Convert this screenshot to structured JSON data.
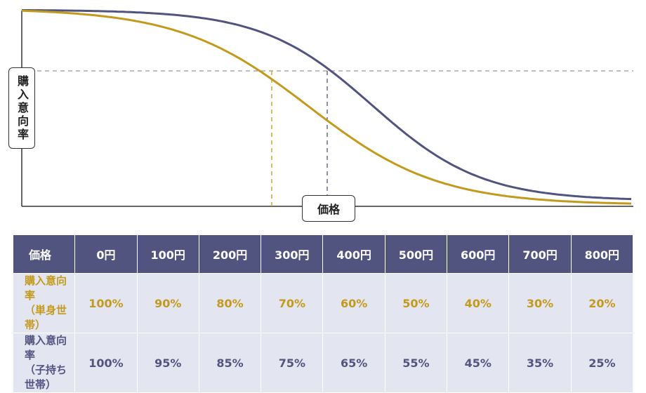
{
  "chart_data": {
    "type": "line",
    "ylabel": "購入意向率",
    "xlabel": "価格",
    "series": [
      {
        "name": "購入意向率（単身世帯）",
        "color": "#c49a1c"
      },
      {
        "name": "購入意向率（子持ち世帯）",
        "color": "#525480"
      }
    ],
    "grid": false
  },
  "table": {
    "header": [
      "価格",
      "0円",
      "100円",
      "200円",
      "300円",
      "400円",
      "500円",
      "600円",
      "700円",
      "800円"
    ],
    "rows": [
      {
        "label_line1": "購入意向率",
        "label_line2": "（単身世帯）",
        "values": [
          "100%",
          "90%",
          "80%",
          "70%",
          "60%",
          "50%",
          "40%",
          "30%",
          "20%"
        ]
      },
      {
        "label_line1": "購入意向率",
        "label_line2": "（子持ち世帯）",
        "values": [
          "100%",
          "95%",
          "85%",
          "75%",
          "65%",
          "55%",
          "45%",
          "35%",
          "25%"
        ]
      }
    ]
  }
}
